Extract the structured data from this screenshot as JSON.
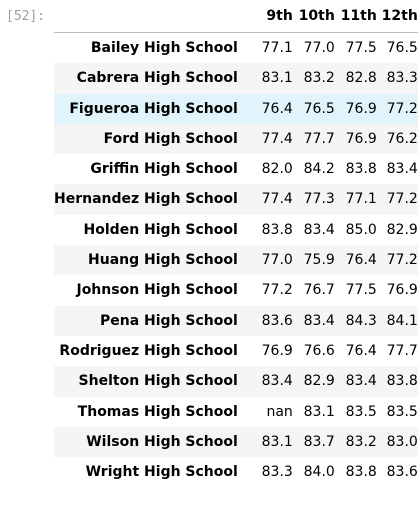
{
  "cell": {
    "prompt": "[52]:"
  },
  "table": {
    "index_header": "",
    "columns": [
      "9th",
      "10th",
      "11th",
      "12th"
    ],
    "rows": [
      {
        "school": "Bailey High School",
        "values": [
          "77.1",
          "77.0",
          "77.5",
          "76.5"
        ]
      },
      {
        "school": "Cabrera High School",
        "values": [
          "83.1",
          "83.2",
          "82.8",
          "83.3"
        ]
      },
      {
        "school": "Figueroa High School",
        "values": [
          "76.4",
          "76.5",
          "76.9",
          "77.2"
        ]
      },
      {
        "school": "Ford High School",
        "values": [
          "77.4",
          "77.7",
          "76.9",
          "76.2"
        ]
      },
      {
        "school": "Griffin High School",
        "values": [
          "82.0",
          "84.2",
          "83.8",
          "83.4"
        ]
      },
      {
        "school": "Hernandez High School",
        "values": [
          "77.4",
          "77.3",
          "77.1",
          "77.2"
        ]
      },
      {
        "school": "Holden High School",
        "values": [
          "83.8",
          "83.4",
          "85.0",
          "82.9"
        ]
      },
      {
        "school": "Huang High School",
        "values": [
          "77.0",
          "75.9",
          "76.4",
          "77.2"
        ]
      },
      {
        "school": "Johnson High School",
        "values": [
          "77.2",
          "76.7",
          "77.5",
          "76.9"
        ]
      },
      {
        "school": "Pena High School",
        "values": [
          "83.6",
          "83.4",
          "84.3",
          "84.1"
        ]
      },
      {
        "school": "Rodriguez High School",
        "values": [
          "76.9",
          "76.6",
          "76.4",
          "77.7"
        ]
      },
      {
        "school": "Shelton High School",
        "values": [
          "83.4",
          "82.9",
          "83.4",
          "83.8"
        ]
      },
      {
        "school": "Thomas High School",
        "values": [
          "nan",
          "83.1",
          "83.5",
          "83.5"
        ]
      },
      {
        "school": "Wilson High School",
        "values": [
          "83.1",
          "83.7",
          "83.2",
          "83.0"
        ]
      },
      {
        "school": "Wright High School",
        "values": [
          "83.3",
          "84.0",
          "83.8",
          "83.6"
        ]
      }
    ],
    "highlighted_row": "Figueroa High School",
    "colors": {
      "stripe": "#f5f5f5",
      "hover": "#e1f4fb",
      "prompt": "#9e9e9e"
    }
  }
}
